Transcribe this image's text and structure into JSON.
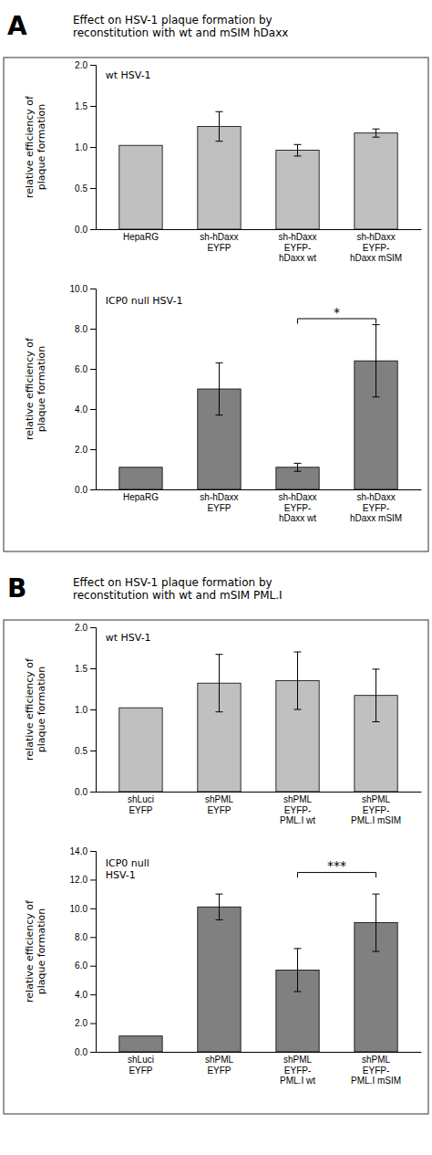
{
  "chart_data": [
    {
      "type": "bar",
      "title": "Effect on HSV-1 plaque formation by\nreconstitution with wt and mSIM hDaxx",
      "annotations": [
        {
          "text": "A"
        }
      ],
      "subtitle": "wt HSV-1",
      "ylabel": "relative efficiency of\nplaque formation",
      "categories": [
        "HepaRG",
        "sh-hDaxx\nEYFP",
        "sh-hDaxx\nEYFP-\nhDaxx wt",
        "sh-hDaxx\nEYFP-\nhDaxx mSIM"
      ],
      "values": [
        1.02,
        1.25,
        0.96,
        1.17
      ],
      "errors": [
        0.0,
        0.18,
        0.07,
        0.05
      ],
      "color": "#c0c0c0",
      "ylim": [
        0.0,
        2.0
      ],
      "yticks": [
        {
          "value": 0.0,
          "label": "0.0"
        },
        0.5,
        {
          "value": 1.0,
          "label": "1.0"
        },
        1.5,
        {
          "value": 2.0,
          "label": "2.0"
        }
      ],
      "grid": false
    },
    {
      "type": "bar",
      "subtitle": "ICP0 null HSV-1",
      "ylabel": "relative efficiency of\nplaque formation",
      "categories": [
        "HepaRG",
        "sh-hDaxx\nEYFP",
        "sh-hDaxx\nEYFP-\nhDaxx wt",
        "sh-hDaxx\nEYFP-\nhDaxx mSIM"
      ],
      "values": [
        1.1,
        5.0,
        1.1,
        6.4
      ],
      "errors": [
        0.0,
        1.3,
        0.2,
        1.8
      ],
      "color": "#808080",
      "ylim": [
        0.0,
        10.0
      ],
      "yticks": [
        {
          "value": 0.0,
          "label": "0.0"
        },
        {
          "value": 2.0,
          "label": "2.0"
        },
        {
          "value": 4.0,
          "label": "4.0"
        },
        {
          "value": 6.0,
          "label": "6.0"
        },
        {
          "value": 8.0,
          "label": "8.0"
        },
        {
          "value": 10.0,
          "label": "10.0"
        }
      ],
      "annotations": [
        {
          "text": "*",
          "x": [
            2,
            3
          ],
          "y": 8.5
        }
      ],
      "grid": false
    },
    {
      "type": "bar",
      "title": "Effect on HSV-1 plaque formation by\nreconstitution with wt and mSIM PML.I",
      "annotations": [
        {
          "text": "B"
        }
      ],
      "subtitle": "wt HSV-1",
      "ylabel": "relative efficiency of\nplaque formation",
      "categories": [
        "shLuci\nEYFP",
        "shPML\nEYFP",
        "shPML\nEYFP-\nPML.I wt",
        "shPML\nEYFP-\nPML.I mSIM"
      ],
      "values": [
        1.02,
        1.32,
        1.35,
        1.17
      ],
      "errors": [
        0.0,
        0.35,
        0.35,
        0.32
      ],
      "color": "#c0c0c0",
      "ylim": [
        0.0,
        2.0
      ],
      "yticks": [
        {
          "value": 0.0,
          "label": "0.0"
        },
        0.5,
        {
          "value": 1.0,
          "label": "1.0"
        },
        1.5,
        {
          "value": 2.0,
          "label": "2.0"
        }
      ],
      "grid": false
    },
    {
      "type": "bar",
      "subtitle": "ICP0 null\nHSV-1",
      "ylabel": "relative efficiency of\nplaque formation",
      "categories": [
        "shLuci\nEYFP",
        "shPML\nEYFP",
        "shPML\nEYFP-\nPML.I wt",
        "shPML\nEYFP-\nPML.I mSIM"
      ],
      "values": [
        1.1,
        10.1,
        5.7,
        9.0
      ],
      "errors": [
        0.0,
        0.9,
        1.5,
        2.0
      ],
      "color": "#808080",
      "ylim": [
        0.0,
        14.0
      ],
      "yticks": [
        {
          "value": 0.0,
          "label": "0.0"
        },
        {
          "value": 2.0,
          "label": "2.0"
        },
        {
          "value": 4.0,
          "label": "4.0"
        },
        {
          "value": 6.0,
          "label": "6.0"
        },
        {
          "value": 8.0,
          "label": "8.0"
        },
        {
          "value": 10.0,
          "label": "10.0"
        },
        {
          "value": 12.0,
          "label": "12.0"
        },
        {
          "value": 14.0,
          "label": "14.0"
        }
      ],
      "annotations": [
        {
          "text": "***",
          "x": [
            2,
            3
          ],
          "y": 12.5
        }
      ],
      "grid": false
    }
  ]
}
